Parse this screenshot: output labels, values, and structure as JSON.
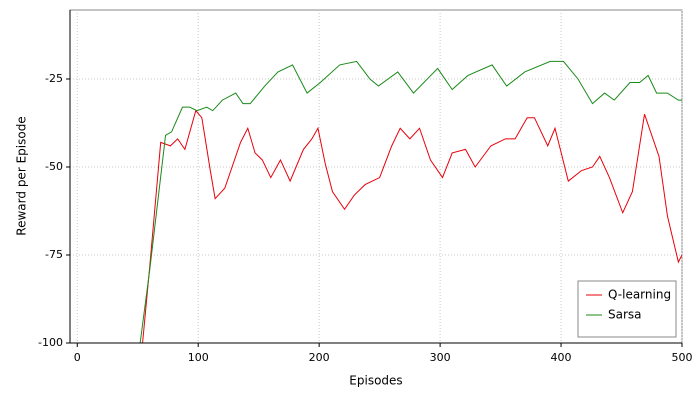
{
  "chart_data": {
    "type": "line",
    "x_label": "Episodes",
    "y_label": "Reward per Episode",
    "xlim": [
      -6,
      500
    ],
    "ylim": [
      -100,
      -5.4
    ],
    "xticks": [
      0,
      100,
      200,
      300,
      400,
      500
    ],
    "yticks": [
      -100,
      -75,
      -50,
      -25
    ],
    "grid": true,
    "legend": "lower right",
    "series": [
      {
        "name": "Q-learning",
        "color": "#e8000b",
        "x": [
          50,
          54,
          60,
          69,
          77,
          83,
          89,
          98,
          103,
          110,
          114,
          122,
          135,
          141,
          147,
          153,
          160,
          168,
          176,
          187,
          194,
          199,
          205,
          211,
          221,
          229,
          238,
          250,
          260,
          267,
          275,
          283,
          292,
          302,
          310,
          321,
          329,
          342,
          354,
          362,
          372,
          378,
          389,
          395,
          406,
          417,
          426,
          432,
          440,
          451,
          459,
          469,
          481,
          488,
          497,
          500
        ],
        "values": [
          -115,
          -100,
          -78,
          -43,
          -44,
          -42,
          -45,
          -34,
          -36,
          -51,
          -59,
          -56,
          -43,
          -39,
          -46,
          -48,
          -53,
          -48,
          -54,
          -45,
          -42,
          -39,
          -49,
          -57,
          -62,
          -58,
          -55,
          -53,
          -44,
          -39,
          -42,
          -39,
          -48,
          -53,
          -46,
          -45,
          -50,
          -44,
          -42,
          -42,
          -36,
          -36,
          -44,
          -39,
          -54,
          -51,
          -50,
          -47,
          -53,
          -63,
          -57,
          -35,
          -47,
          -64,
          -77,
          -75
        ]
      },
      {
        "name": "Sarsa",
        "color": "#1a8a1a",
        "x": [
          50,
          52,
          60,
          73,
          78,
          87,
          93,
          99,
          107,
          112,
          120,
          131,
          137,
          143,
          155,
          166,
          178,
          190,
          201,
          217,
          231,
          242,
          249,
          265,
          278,
          298,
          310,
          323,
          343,
          355,
          370,
          391,
          402,
          414,
          426,
          436,
          444,
          457,
          465,
          472,
          479,
          488,
          497,
          500
        ],
        "values": [
          -115,
          -100,
          -79,
          -41,
          -40,
          -33,
          -33,
          -34,
          -33,
          -34,
          -31,
          -29,
          -32,
          -32,
          -27,
          -23,
          -21,
          -29,
          -26,
          -21,
          -20,
          -25,
          -27,
          -23,
          -29,
          -22,
          -28,
          -24,
          -21,
          -27,
          -23,
          -20,
          -20,
          -25,
          -32,
          -29,
          -31,
          -26,
          -26,
          -24,
          -29,
          -29,
          -31,
          -31
        ]
      }
    ]
  }
}
